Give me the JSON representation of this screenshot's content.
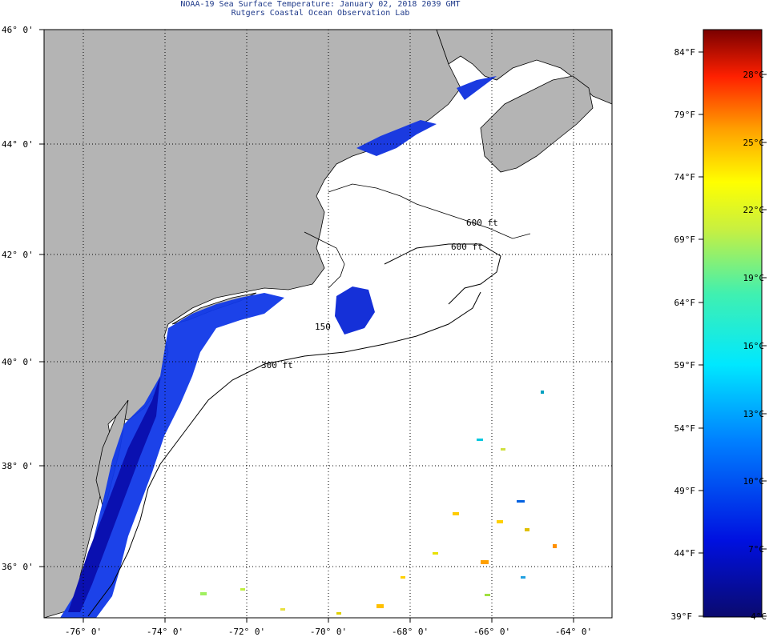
{
  "title": {
    "line1": "NOAA-19 Sea Surface Temperature:  January 02, 2018 2039 GMT",
    "line2": "Rutgers Coastal Ocean Observation Lab"
  },
  "map": {
    "lat_labels": [
      "46° 0'",
      "44° 0'",
      "42° 0'",
      "40° 0'",
      "38° 0'",
      "36° 0'"
    ],
    "lon_labels": [
      "-76° 0'",
      "-74° 0'",
      "-72° 0'",
      "-70° 0'",
      "-68° 0'",
      "-66° 0'",
      "-64° 0'"
    ],
    "contour_labels": [
      "600 ft",
      "600 ft",
      "150",
      "300 ft"
    ],
    "colors": {
      "land": "#b4b4b4",
      "ocean": "#ffffff",
      "grid": "#000000"
    }
  },
  "colorbar": {
    "fahrenheit_labels": [
      "84°F",
      "79°F",
      "74°F",
      "69°F",
      "64°F",
      "59°F",
      "54°F",
      "49°F",
      "44°F",
      "39°F"
    ],
    "celsius_labels": [
      "28°C",
      "25°C",
      "22°C",
      "19°C",
      "16°C",
      "13°C",
      "10°C",
      "7°C",
      "4°C"
    ]
  }
}
